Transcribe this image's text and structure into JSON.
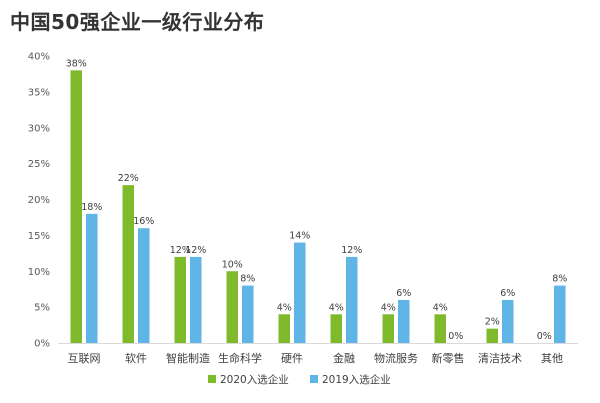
{
  "title": "中国50强企业一级行业分布",
  "chart_data": {
    "type": "bar",
    "title": "中国50强企业一级行业分布",
    "categories": [
      "互联网",
      "软件",
      "智能制造",
      "生命科学",
      "硬件",
      "金融",
      "物流服务",
      "新零售",
      "清洁技术",
      "其他"
    ],
    "series": [
      {
        "name": "2020入选企业",
        "color": "#7fba2b",
        "values": [
          38,
          22,
          12,
          10,
          4,
          4,
          4,
          4,
          2,
          0
        ]
      },
      {
        "name": "2019入选企业",
        "color": "#5fb5e6",
        "values": [
          18,
          16,
          12,
          8,
          14,
          12,
          6,
          0,
          6,
          8
        ]
      }
    ],
    "ylim": [
      0,
      40
    ],
    "yticks": [
      0,
      5,
      10,
      15,
      20,
      25,
      30,
      35,
      40
    ],
    "unit": "%",
    "xlabel": "",
    "ylabel": "",
    "legend": "bottom",
    "grid": false
  }
}
